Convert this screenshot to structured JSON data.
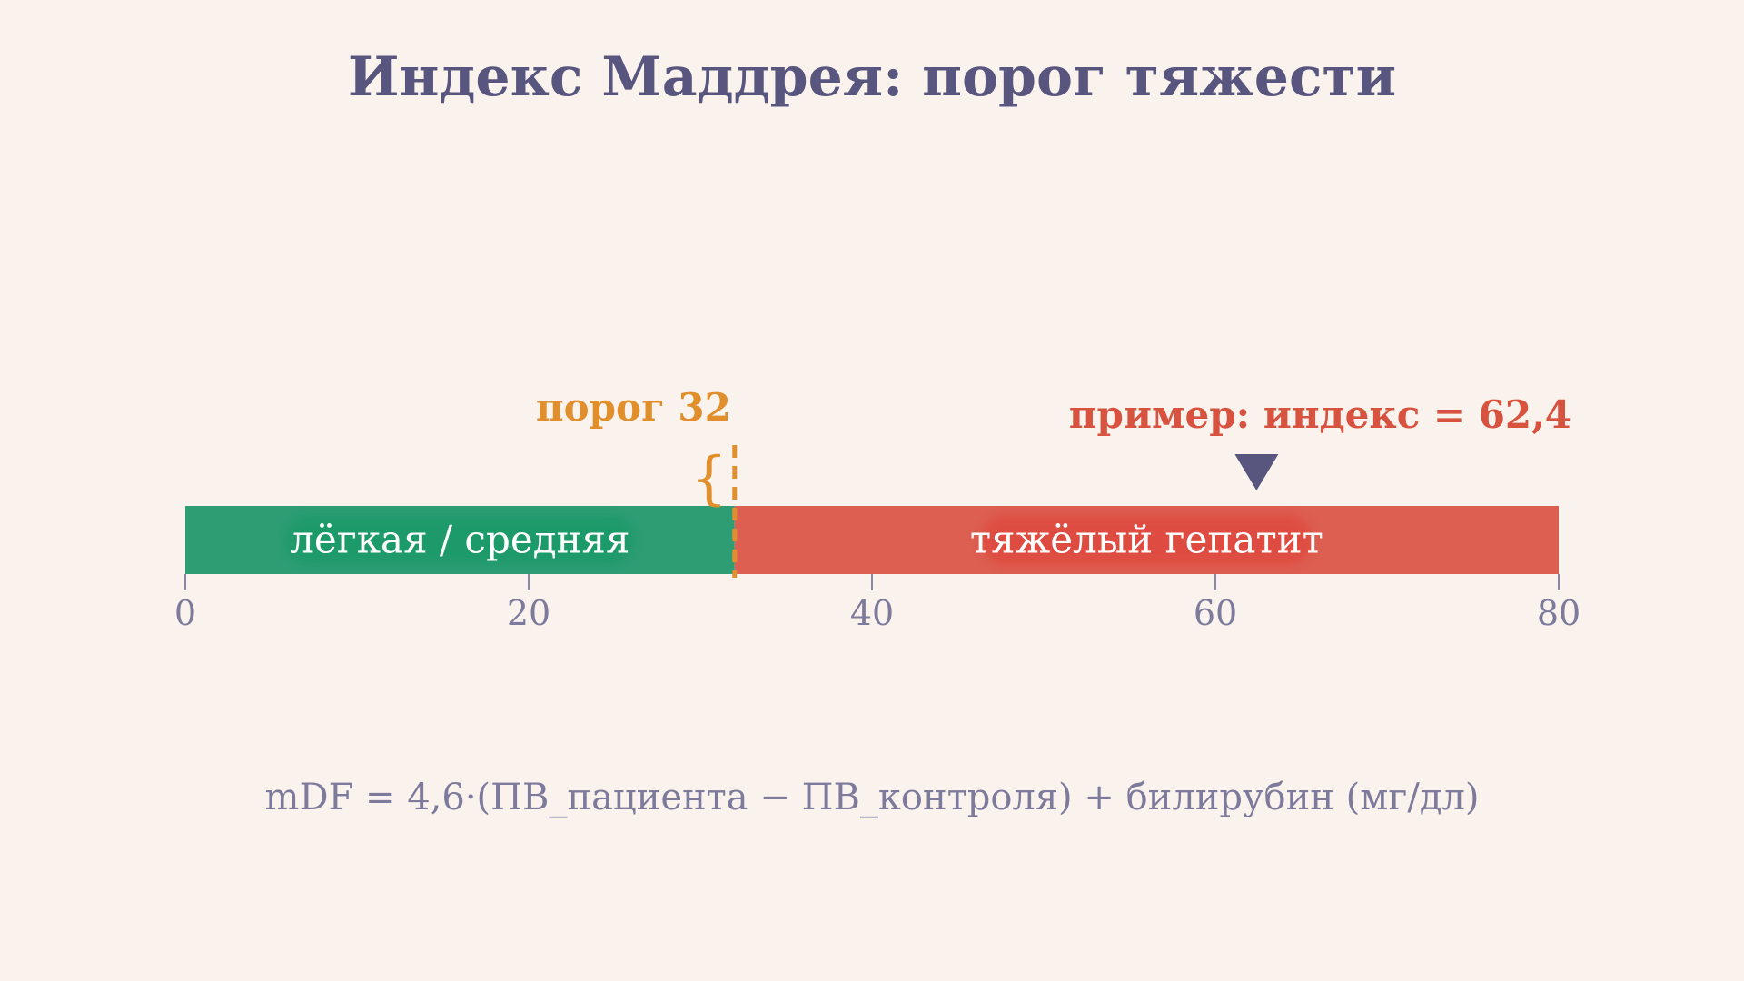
{
  "title": "Индекс Маддрея: порог тяжести",
  "scale": {
    "min": 0,
    "max": 80,
    "ticks": [
      0,
      20,
      40,
      60,
      80
    ],
    "tick_labels": [
      "0",
      "20",
      "40",
      "60",
      "80"
    ]
  },
  "zones": [
    {
      "label": "лёгкая / средняя",
      "from": 0,
      "to": 32,
      "color": "#2f9d74",
      "label_color": "#1f9a6b"
    },
    {
      "label": "тяжёлый гепатит",
      "from": 32,
      "to": 80,
      "color": "#dc5f51",
      "label_color": "#df4b40"
    }
  ],
  "threshold": {
    "value": 32,
    "label": "порог 32",
    "color": "#e08f2c"
  },
  "example": {
    "value": 62.4,
    "label": "пример: индекс = 62,4",
    "color": "#d8533f",
    "marker_color": "#58557e"
  },
  "formula": "mDF = 4,6·(ПВ_пациента − ПВ_контроля) + билирубин (мг/дл)"
}
